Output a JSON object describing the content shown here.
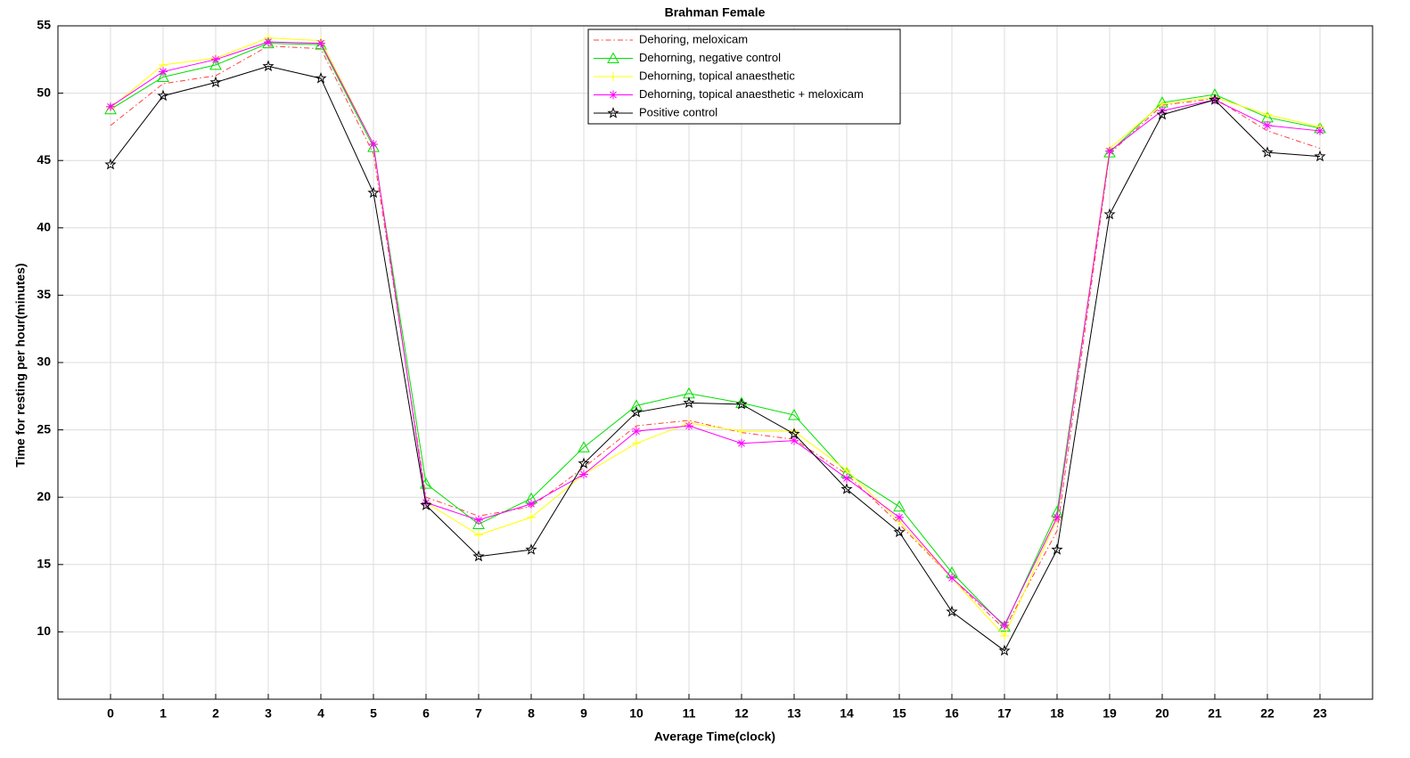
{
  "chart_data": {
    "type": "line",
    "title": "Brahman Female",
    "x_label": "Average Time(clock)",
    "y_label": "Time for resting per hour(minutes)",
    "x": [
      0,
      1,
      2,
      3,
      4,
      5,
      6,
      7,
      8,
      9,
      10,
      11,
      12,
      13,
      14,
      15,
      16,
      17,
      18,
      19,
      20,
      21,
      22,
      23
    ],
    "xlim": [
      -1,
      24
    ],
    "xticks": [
      0,
      1,
      2,
      3,
      4,
      5,
      6,
      7,
      8,
      9,
      10,
      11,
      12,
      13,
      14,
      15,
      16,
      17,
      18,
      19,
      20,
      21,
      22,
      23
    ],
    "ylim": [
      5,
      55
    ],
    "yticks": [
      10,
      15,
      20,
      25,
      30,
      35,
      40,
      45,
      50,
      55
    ],
    "grid": true,
    "legend": "top",
    "series": [
      {
        "name": "Dehoring, meloxicam",
        "color": "#ff4040",
        "line_style": "dashdot",
        "marker": "none",
        "values": [
          47.6,
          50.7,
          51.3,
          53.5,
          53.3,
          45.5,
          20,
          18.6,
          19.3,
          22.2,
          25.3,
          25.7,
          24.8,
          24.3,
          21.7,
          18,
          14,
          10.2,
          17.5,
          45.5,
          49.1,
          49.6,
          47.2,
          45.9
        ]
      },
      {
        "name": "Dehorning, negative control",
        "color": "#00e000",
        "line_style": "solid",
        "marker": "triangle",
        "values": [
          48.8,
          51.2,
          52.1,
          53.7,
          53.6,
          46,
          21,
          18,
          19.9,
          23.7,
          26.8,
          27.7,
          27,
          26.1,
          21.8,
          19.3,
          14.4,
          10.4,
          18.9,
          45.6,
          49.3,
          49.9,
          48.2,
          47.4
        ]
      },
      {
        "name": "Dehorning, topical anaesthetic",
        "color": "#ffff00",
        "line_style": "solid",
        "marker": "plus",
        "values": [
          48.9,
          52.1,
          52.6,
          54.1,
          53.9,
          46.2,
          19.6,
          17.2,
          18.5,
          21.7,
          24,
          25.5,
          24.9,
          24.9,
          22,
          18.2,
          14,
          9.7,
          18.4,
          45.9,
          49.2,
          49.7,
          48.4,
          47.5
        ]
      },
      {
        "name": "Dehorning, topical anaesthetic + meloxicam",
        "color": "#ff00ff",
        "line_style": "solid",
        "marker": "asterisk",
        "values": [
          49,
          51.6,
          52.5,
          53.8,
          53.7,
          46.2,
          19.6,
          18.3,
          19.5,
          21.7,
          24.9,
          25.3,
          24,
          24.2,
          21.4,
          18.5,
          14,
          10.5,
          18.5,
          45.7,
          48.7,
          49.5,
          47.6,
          47.2
        ]
      },
      {
        "name": "Positive control",
        "color": "#000000",
        "line_style": "solid",
        "marker": "pentagram",
        "values": [
          44.7,
          49.8,
          50.8,
          52,
          51.1,
          42.6,
          19.4,
          15.6,
          16.1,
          22.5,
          26.3,
          27,
          26.9,
          24.7,
          20.6,
          17.4,
          11.5,
          8.6,
          16.1,
          41,
          48.4,
          49.5,
          45.6,
          45.3
        ]
      }
    ]
  }
}
